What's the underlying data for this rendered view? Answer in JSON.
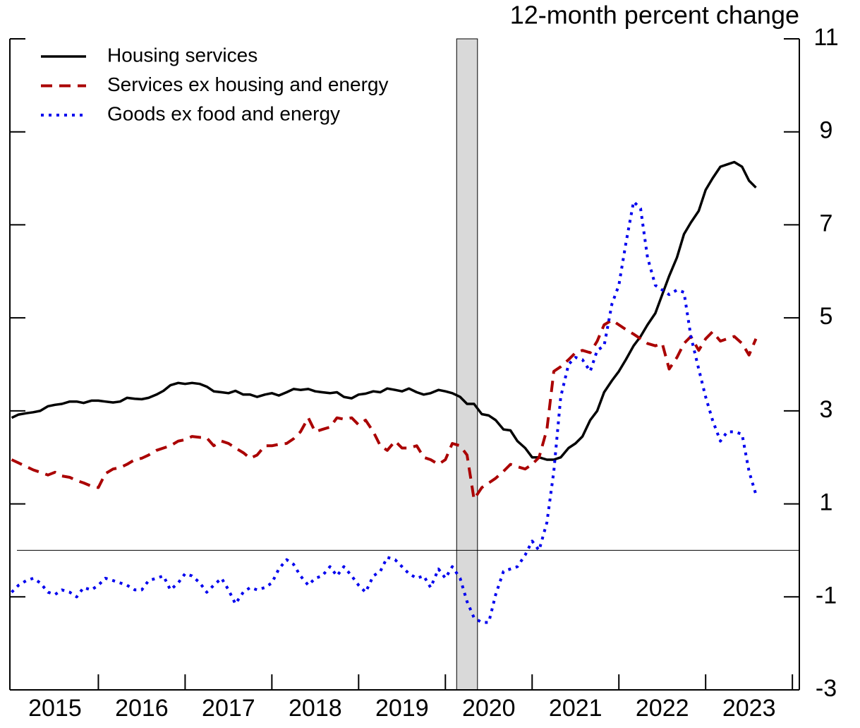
{
  "chart_data": {
    "type": "line",
    "title": "12-month percent change",
    "x": [
      2015.0,
      2015.08,
      2015.17,
      2015.25,
      2015.33,
      2015.42,
      2015.5,
      2015.58,
      2015.67,
      2015.75,
      2015.83,
      2015.92,
      2016.0,
      2016.08,
      2016.17,
      2016.25,
      2016.33,
      2016.42,
      2016.5,
      2016.58,
      2016.67,
      2016.75,
      2016.83,
      2016.92,
      2017.0,
      2017.08,
      2017.17,
      2017.25,
      2017.33,
      2017.42,
      2017.5,
      2017.58,
      2017.67,
      2017.75,
      2017.83,
      2017.92,
      2018.0,
      2018.08,
      2018.17,
      2018.25,
      2018.33,
      2018.42,
      2018.5,
      2018.58,
      2018.67,
      2018.75,
      2018.83,
      2018.92,
      2019.0,
      2019.08,
      2019.17,
      2019.25,
      2019.33,
      2019.42,
      2019.5,
      2019.58,
      2019.67,
      2019.75,
      2019.83,
      2019.92,
      2020.0,
      2020.08,
      2020.17,
      2020.25,
      2020.33,
      2020.42,
      2020.5,
      2020.58,
      2020.67,
      2020.75,
      2020.83,
      2020.92,
      2021.0,
      2021.08,
      2021.17,
      2021.25,
      2021.33,
      2021.42,
      2021.5,
      2021.58,
      2021.67,
      2021.75,
      2021.83,
      2021.92,
      2022.0,
      2022.08,
      2022.17,
      2022.25,
      2022.33,
      2022.42,
      2022.5,
      2022.58,
      2022.67,
      2022.75,
      2022.83,
      2022.92,
      2023.0,
      2023.08,
      2023.17,
      2023.25,
      2023.33,
      2023.42,
      2023.5,
      2023.58
    ],
    "series": [
      {
        "name": "Housing services",
        "color": "#000000",
        "style": "solid",
        "values": [
          2.85,
          2.92,
          2.95,
          2.97,
          3.0,
          3.1,
          3.13,
          3.15,
          3.2,
          3.2,
          3.17,
          3.22,
          3.22,
          3.2,
          3.18,
          3.2,
          3.28,
          3.26,
          3.25,
          3.28,
          3.35,
          3.43,
          3.55,
          3.6,
          3.58,
          3.6,
          3.58,
          3.52,
          3.42,
          3.4,
          3.38,
          3.43,
          3.35,
          3.35,
          3.3,
          3.35,
          3.38,
          3.33,
          3.4,
          3.47,
          3.45,
          3.47,
          3.42,
          3.4,
          3.38,
          3.4,
          3.3,
          3.27,
          3.35,
          3.37,
          3.42,
          3.4,
          3.48,
          3.45,
          3.42,
          3.48,
          3.4,
          3.35,
          3.38,
          3.45,
          3.42,
          3.38,
          3.3,
          3.15,
          3.15,
          2.93,
          2.9,
          2.8,
          2.6,
          2.58,
          2.35,
          2.2,
          2.0,
          2.0,
          1.95,
          1.95,
          2.0,
          2.2,
          2.3,
          2.45,
          2.8,
          3.0,
          3.4,
          3.65,
          3.85,
          4.1,
          4.4,
          4.6,
          4.85,
          5.1,
          5.5,
          5.9,
          6.3,
          6.8,
          7.05,
          7.3,
          7.75,
          8.0,
          8.25,
          8.3,
          8.35,
          8.25,
          7.95,
          7.8
        ]
      },
      {
        "name": "Services ex housing and energy",
        "color": "#aa0000",
        "style": "dashed",
        "values": [
          1.95,
          1.88,
          1.8,
          1.73,
          1.68,
          1.62,
          1.68,
          1.6,
          1.57,
          1.5,
          1.45,
          1.38,
          1.35,
          1.65,
          1.75,
          1.78,
          1.85,
          1.95,
          1.98,
          2.05,
          2.15,
          2.2,
          2.25,
          2.35,
          2.38,
          2.45,
          2.43,
          2.42,
          2.25,
          2.35,
          2.3,
          2.2,
          2.1,
          1.98,
          2.05,
          2.25,
          2.25,
          2.28,
          2.3,
          2.4,
          2.55,
          2.85,
          2.55,
          2.6,
          2.65,
          2.85,
          2.82,
          2.85,
          2.7,
          2.8,
          2.55,
          2.25,
          2.15,
          2.35,
          2.2,
          2.2,
          2.25,
          2.0,
          1.95,
          1.85,
          1.95,
          2.3,
          2.25,
          2.05,
          1.1,
          1.35,
          1.45,
          1.55,
          1.7,
          1.85,
          1.8,
          1.75,
          1.85,
          2.0,
          2.6,
          3.85,
          3.95,
          4.1,
          4.25,
          4.3,
          4.25,
          4.5,
          4.85,
          4.95,
          4.85,
          4.75,
          4.65,
          4.55,
          4.45,
          4.4,
          4.45,
          3.9,
          4.15,
          4.45,
          4.6,
          4.3,
          4.55,
          4.7,
          4.5,
          4.55,
          4.6,
          4.45,
          4.2,
          4.55
        ]
      },
      {
        "name": "Goods ex food and energy",
        "color": "#0000ee",
        "style": "dotted",
        "values": [
          -0.9,
          -0.75,
          -0.65,
          -0.6,
          -0.7,
          -0.9,
          -0.95,
          -0.85,
          -0.9,
          -1.0,
          -0.8,
          -0.85,
          -0.75,
          -0.6,
          -0.65,
          -0.7,
          -0.75,
          -0.85,
          -0.85,
          -0.65,
          -0.6,
          -0.55,
          -0.85,
          -0.7,
          -0.5,
          -0.55,
          -0.7,
          -0.9,
          -0.75,
          -0.6,
          -0.85,
          -1.15,
          -0.9,
          -0.8,
          -0.85,
          -0.8,
          -0.7,
          -0.4,
          -0.2,
          -0.3,
          -0.55,
          -0.75,
          -0.6,
          -0.55,
          -0.35,
          -0.55,
          -0.35,
          -0.55,
          -0.75,
          -0.9,
          -0.55,
          -0.45,
          -0.15,
          -0.2,
          -0.35,
          -0.5,
          -0.6,
          -0.55,
          -0.8,
          -0.4,
          -0.6,
          -0.35,
          -0.6,
          -1.1,
          -1.45,
          -1.55,
          -1.55,
          -0.95,
          -0.45,
          -0.4,
          -0.35,
          -0.1,
          0.2,
          0.0,
          0.6,
          1.7,
          3.3,
          4.0,
          4.15,
          4.1,
          3.85,
          4.3,
          4.4,
          5.3,
          5.7,
          6.6,
          7.5,
          7.35,
          6.3,
          5.7,
          5.6,
          5.5,
          5.6,
          5.55,
          4.6,
          3.9,
          3.3,
          2.8,
          2.35,
          2.55,
          2.55,
          2.5,
          1.7,
          1.2
        ]
      }
    ],
    "xlim": [
      2014.98,
      2024.08
    ],
    "xticks": [
      {
        "value": 2015.5,
        "label": "2015"
      },
      {
        "value": 2016.5,
        "label": "2016"
      },
      {
        "value": 2017.5,
        "label": "2017"
      },
      {
        "value": 2018.5,
        "label": "2018"
      },
      {
        "value": 2019.5,
        "label": "2019"
      },
      {
        "value": 2020.5,
        "label": "2020"
      },
      {
        "value": 2021.5,
        "label": "2021"
      },
      {
        "value": 2022.5,
        "label": "2022"
      },
      {
        "value": 2023.5,
        "label": "2023"
      }
    ],
    "xminorticks": [
      2016,
      2017,
      2018,
      2019,
      2020,
      2021,
      2022,
      2023,
      2024
    ],
    "ylim": [
      -3,
      11
    ],
    "yticks": [
      -3,
      -1,
      1,
      3,
      5,
      7,
      9,
      11
    ],
    "y_axis_side": "right",
    "zero_line": 0,
    "shaded_period": [
      2020.13,
      2020.37
    ],
    "legend": "upper left"
  }
}
